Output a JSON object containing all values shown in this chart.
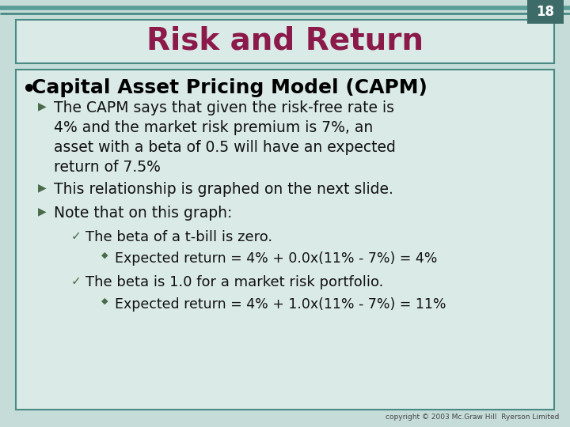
{
  "background_color": "#c5dcd8",
  "slide_number": "18",
  "slide_number_bg": "#3d6b68",
  "title": "Risk and Return",
  "title_color": "#8b1a4a",
  "title_bg": "#daeae7",
  "title_border_color": "#4a8a84",
  "content_bg": "#daeae7",
  "content_border_color": "#4a8a84",
  "bullet_heading": "Capital Asset Pricing Model (CAPM)",
  "bullet_heading_color": "#000000",
  "arrow_color": "#4a6b4a",
  "copyright": "copyright © 2003 Mc.Graw Hill  Ryerson Limited",
  "top_line_color": "#4a8a84",
  "top_line2_color": "#5a9e98"
}
